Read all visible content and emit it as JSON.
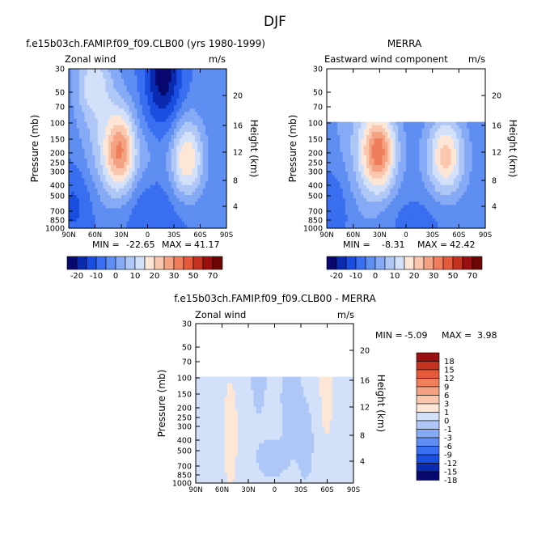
{
  "page_title": "DJF",
  "units": "m/s",
  "stats_label_min": "MIN =",
  "stats_label_max": "MAX =",
  "axes": {
    "ylabel": "Pressure (mb)",
    "ylabel_right": "Height (km)",
    "pressure_ticks": [
      "30",
      "50",
      "70",
      "100",
      "150",
      "200",
      "250",
      "300",
      "400",
      "500",
      "700",
      "850",
      "1000"
    ],
    "height_ticks_top": [
      "20",
      "16",
      "12",
      "8",
      "4"
    ],
    "height_ticks_bottom": [
      "20",
      "16",
      "12",
      "8",
      "4"
    ],
    "lat_ticks": [
      "90N",
      "60N",
      "30N",
      "0",
      "30S",
      "60S",
      "90S"
    ]
  },
  "colors": {
    "full_scale": [
      "#08086e",
      "#0a2ab0",
      "#1a4ee0",
      "#3a6ef0",
      "#5f8ef2",
      "#86aaf5",
      "#aec7f7",
      "#d2e0f9",
      "#fde6d6",
      "#fac6ad",
      "#f5a283",
      "#f07e5c",
      "#e55a3a",
      "#c63220",
      "#9a1010",
      "#6e0505"
    ],
    "diff_scale": [
      "#08086e",
      "#0a2ab0",
      "#1a4ee0",
      "#3a6ef0",
      "#5f8ef2",
      "#86aaf5",
      "#aec7f7",
      "#d2e0f9",
      "#fde6d6",
      "#fac6ad",
      "#f5a283",
      "#f07e5c",
      "#e55a3a",
      "#c63220",
      "#9a1010"
    ]
  },
  "colorbar_top": {
    "labels": [
      "-20",
      "-10",
      "0",
      "10",
      "20",
      "30",
      "50",
      "70"
    ],
    "label_positions": [
      1,
      3,
      5,
      7,
      9,
      11,
      13,
      15
    ]
  },
  "colorbar_diff": {
    "labels": [
      "18",
      "15",
      "12",
      "9",
      "6",
      "3",
      "1",
      "0",
      "-1",
      "-3",
      "-6",
      "-9",
      "-12",
      "-15",
      "-18"
    ]
  },
  "chart_data": [
    {
      "type": "heatmap",
      "title": "f.e15b03ch.FAMIP.f09_f09.CLB00 (yrs 1980-1999)",
      "subtitle": "Zonal wind",
      "units": "m/s",
      "xlabel": "",
      "ylabel": "Pressure (mb)",
      "ylabel_right": "Height (km)",
      "x_range": [
        "90N",
        "90S"
      ],
      "y_range": [
        1000,
        30
      ],
      "stats": {
        "min": "-22.65",
        "max": "41.17"
      },
      "features": [
        {
          "kind": "jet",
          "lat": 30,
          "pressure": 200,
          "value": 41
        },
        {
          "kind": "jet",
          "lat": -48,
          "pressure": 200,
          "value": 32
        },
        {
          "kind": "easterly",
          "lat": -12,
          "pressure": 30,
          "value": -22
        }
      ]
    },
    {
      "type": "heatmap",
      "title": "MERRA",
      "subtitle": "Eastward wind component",
      "units": "m/s",
      "xlabel": "",
      "ylabel": "Pressure (mb)",
      "ylabel_right": "Height (km)",
      "x_range": [
        "90N",
        "90S"
      ],
      "y_range": [
        1000,
        30
      ],
      "data_top_pressure": 100,
      "stats": {
        "min": "-8.31",
        "max": "42.42"
      },
      "features": [
        {
          "kind": "jet",
          "lat": 30,
          "pressure": 200,
          "value": 42
        },
        {
          "kind": "jet",
          "lat": -45,
          "pressure": 250,
          "value": 33
        }
      ]
    },
    {
      "type": "heatmap",
      "title": "f.e15b03ch.FAMIP.f09_f09.CLB00 - MERRA",
      "subtitle": "Zonal wind",
      "units": "m/s",
      "xlabel": "",
      "ylabel": "Pressure (mb)",
      "ylabel_right": "Height (km)",
      "x_range": [
        "90N",
        "90S"
      ],
      "y_range": [
        1000,
        30
      ],
      "data_top_pressure": 100,
      "stats": {
        "min": "-5.09",
        "max": "3.98"
      },
      "levels": [
        -18,
        -15,
        -12,
        -9,
        -6,
        -3,
        -1,
        0,
        1,
        3,
        6,
        9,
        12,
        15,
        18
      ]
    }
  ]
}
